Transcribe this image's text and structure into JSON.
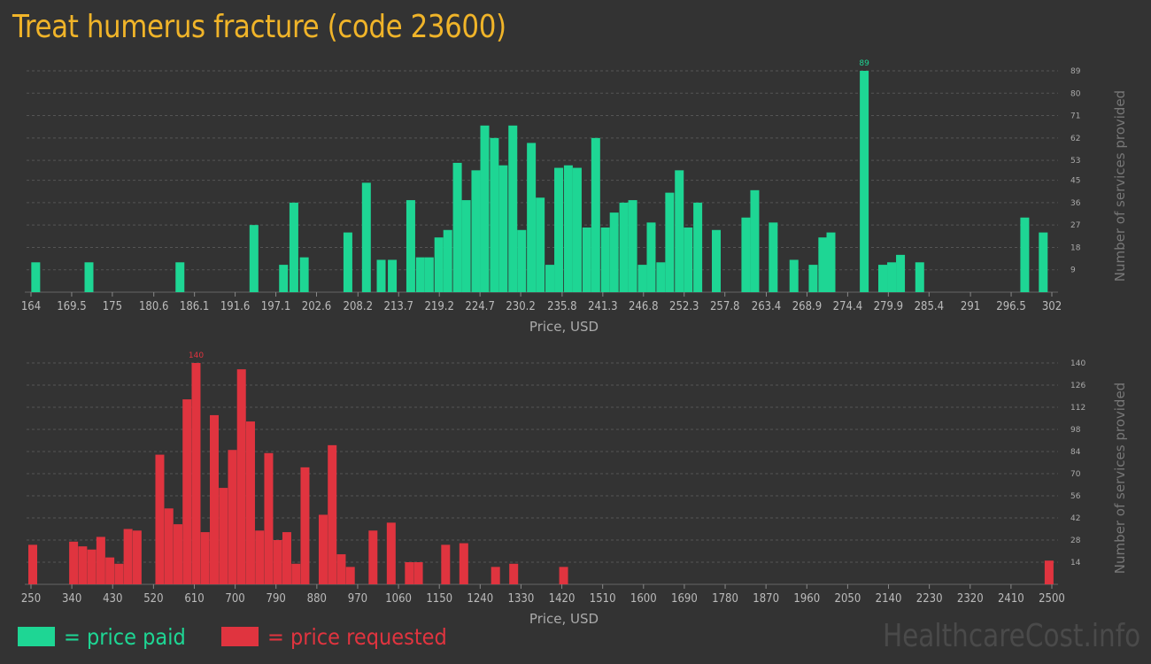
{
  "page": {
    "title": "Treat humerus fracture (code 23600)",
    "brand": "HealthcareCost.info"
  },
  "colors": {
    "background": "#333333",
    "title": "#f0b429",
    "paid": "#1ed694",
    "requested": "#e0343f",
    "grid": "#555555",
    "brand": "#4a4a4a"
  },
  "legend": {
    "paid_label": "= price paid",
    "requested_label": "= price requested"
  },
  "chart_data": [
    {
      "type": "bar",
      "series_name": "price paid",
      "xlabel": "Price, USD",
      "ylabel": "Number of services provided",
      "xlim": [
        164,
        302
      ],
      "ylim": [
        0,
        89
      ],
      "grid": true,
      "x_ticks": [
        164,
        169.5,
        175,
        180.6,
        186.1,
        191.6,
        197.1,
        202.6,
        208.2,
        213.7,
        219.2,
        224.7,
        230.2,
        235.8,
        241.3,
        246.8,
        252.3,
        257.8,
        263.4,
        268.9,
        274.4,
        279.9,
        285.4,
        291,
        296.5,
        302
      ],
      "y_ticks": [
        9,
        18,
        27,
        36,
        45,
        53,
        62,
        71,
        80,
        89
      ],
      "max_label": "89",
      "bars": [
        {
          "x": 164.4,
          "y": 12
        },
        {
          "x": 171.6,
          "y": 12
        },
        {
          "x": 183.9,
          "y": 12
        },
        {
          "x": 193.9,
          "y": 27
        },
        {
          "x": 197.9,
          "y": 11
        },
        {
          "x": 199.3,
          "y": 36
        },
        {
          "x": 200.7,
          "y": 14
        },
        {
          "x": 206.6,
          "y": 24
        },
        {
          "x": 209.1,
          "y": 44
        },
        {
          "x": 211.1,
          "y": 13
        },
        {
          "x": 212.6,
          "y": 13
        },
        {
          "x": 215.1,
          "y": 37
        },
        {
          "x": 216.4,
          "y": 14
        },
        {
          "x": 217.6,
          "y": 14
        },
        {
          "x": 218.9,
          "y": 22
        },
        {
          "x": 220.1,
          "y": 25
        },
        {
          "x": 221.4,
          "y": 52
        },
        {
          "x": 222.6,
          "y": 37
        },
        {
          "x": 223.9,
          "y": 49
        },
        {
          "x": 225.1,
          "y": 67
        },
        {
          "x": 226.4,
          "y": 62
        },
        {
          "x": 227.6,
          "y": 51
        },
        {
          "x": 228.9,
          "y": 67
        },
        {
          "x": 230.1,
          "y": 25
        },
        {
          "x": 231.4,
          "y": 60
        },
        {
          "x": 232.6,
          "y": 38
        },
        {
          "x": 233.9,
          "y": 11
        },
        {
          "x": 235.1,
          "y": 50
        },
        {
          "x": 236.4,
          "y": 51
        },
        {
          "x": 237.6,
          "y": 50
        },
        {
          "x": 238.9,
          "y": 26
        },
        {
          "x": 240.1,
          "y": 62
        },
        {
          "x": 241.4,
          "y": 26
        },
        {
          "x": 242.6,
          "y": 32
        },
        {
          "x": 243.9,
          "y": 36
        },
        {
          "x": 245.1,
          "y": 37
        },
        {
          "x": 246.4,
          "y": 11
        },
        {
          "x": 247.6,
          "y": 28
        },
        {
          "x": 248.9,
          "y": 12
        },
        {
          "x": 250.1,
          "y": 40
        },
        {
          "x": 251.4,
          "y": 49
        },
        {
          "x": 252.6,
          "y": 26
        },
        {
          "x": 253.9,
          "y": 36
        },
        {
          "x": 256.4,
          "y": 25
        },
        {
          "x": 260.4,
          "y": 30
        },
        {
          "x": 261.6,
          "y": 41
        },
        {
          "x": 264.1,
          "y": 28
        },
        {
          "x": 266.9,
          "y": 13
        },
        {
          "x": 269.5,
          "y": 11
        },
        {
          "x": 270.8,
          "y": 22
        },
        {
          "x": 271.9,
          "y": 24
        },
        {
          "x": 276.4,
          "y": 89
        },
        {
          "x": 278.9,
          "y": 11
        },
        {
          "x": 280.1,
          "y": 12
        },
        {
          "x": 281.3,
          "y": 15
        },
        {
          "x": 283.9,
          "y": 12
        },
        {
          "x": 298.1,
          "y": 30
        },
        {
          "x": 300.6,
          "y": 24
        }
      ]
    },
    {
      "type": "bar",
      "series_name": "price requested",
      "xlabel": "Price, USD",
      "ylabel": "Number of services provided",
      "xlim": [
        250,
        2500
      ],
      "ylim": [
        0,
        140
      ],
      "grid": true,
      "x_ticks": [
        250,
        340,
        430,
        520,
        610,
        700,
        790,
        880,
        970,
        1060,
        1150,
        1240,
        1330,
        1420,
        1510,
        1600,
        1690,
        1780,
        1870,
        1960,
        2050,
        2140,
        2230,
        2320,
        2410,
        2500
      ],
      "y_ticks": [
        14,
        28,
        42,
        56,
        70,
        84,
        98,
        112,
        126,
        140
      ],
      "max_label": "140",
      "bars": [
        {
          "x": 250,
          "y": 25
        },
        {
          "x": 340,
          "y": 27
        },
        {
          "x": 360,
          "y": 24
        },
        {
          "x": 380,
          "y": 22
        },
        {
          "x": 400,
          "y": 30
        },
        {
          "x": 420,
          "y": 17
        },
        {
          "x": 440,
          "y": 13
        },
        {
          "x": 460,
          "y": 35
        },
        {
          "x": 480,
          "y": 34
        },
        {
          "x": 530,
          "y": 82
        },
        {
          "x": 550,
          "y": 48
        },
        {
          "x": 570,
          "y": 38
        },
        {
          "x": 590,
          "y": 117
        },
        {
          "x": 610,
          "y": 140
        },
        {
          "x": 630,
          "y": 33
        },
        {
          "x": 650,
          "y": 107
        },
        {
          "x": 670,
          "y": 61
        },
        {
          "x": 690,
          "y": 85
        },
        {
          "x": 710,
          "y": 136
        },
        {
          "x": 730,
          "y": 103
        },
        {
          "x": 750,
          "y": 34
        },
        {
          "x": 770,
          "y": 83
        },
        {
          "x": 790,
          "y": 28
        },
        {
          "x": 810,
          "y": 33
        },
        {
          "x": 830,
          "y": 13
        },
        {
          "x": 850,
          "y": 74
        },
        {
          "x": 890,
          "y": 44
        },
        {
          "x": 910,
          "y": 88
        },
        {
          "x": 930,
          "y": 19
        },
        {
          "x": 950,
          "y": 11
        },
        {
          "x": 1000,
          "y": 34
        },
        {
          "x": 1040,
          "y": 39
        },
        {
          "x": 1080,
          "y": 14
        },
        {
          "x": 1100,
          "y": 14
        },
        {
          "x": 1160,
          "y": 25
        },
        {
          "x": 1200,
          "y": 26
        },
        {
          "x": 1270,
          "y": 11
        },
        {
          "x": 1310,
          "y": 13
        },
        {
          "x": 1420,
          "y": 11
        },
        {
          "x": 2490,
          "y": 15
        }
      ]
    }
  ]
}
